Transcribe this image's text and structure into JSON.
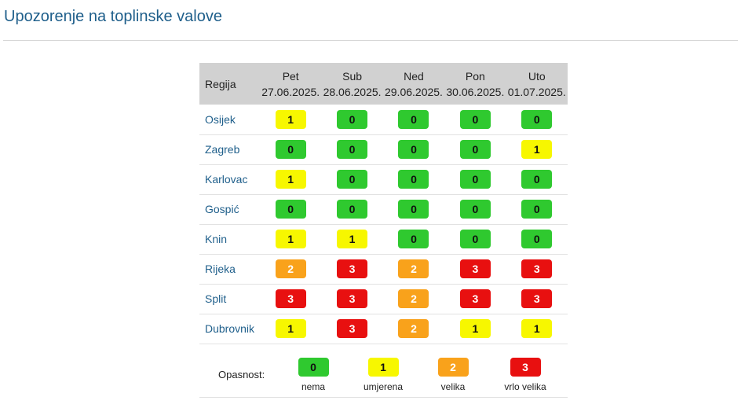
{
  "page": {
    "title": "Upozorenje na toplinske valove"
  },
  "table": {
    "region_header": "Regija",
    "days": [
      {
        "name": "Pet",
        "date": "27.06.2025."
      },
      {
        "name": "Sub",
        "date": "28.06.2025."
      },
      {
        "name": "Ned",
        "date": "29.06.2025."
      },
      {
        "name": "Pon",
        "date": "30.06.2025."
      },
      {
        "name": "Uto",
        "date": "01.07.2025."
      }
    ],
    "rows": [
      {
        "region": "Osijek",
        "levels": [
          "1",
          "0",
          "0",
          "0",
          "0"
        ]
      },
      {
        "region": "Zagreb",
        "levels": [
          "0",
          "0",
          "0",
          "0",
          "1"
        ]
      },
      {
        "region": "Karlovac",
        "levels": [
          "1",
          "0",
          "0",
          "0",
          "0"
        ]
      },
      {
        "region": "Gospić",
        "levels": [
          "0",
          "0",
          "0",
          "0",
          "0"
        ]
      },
      {
        "region": "Knin",
        "levels": [
          "1",
          "1",
          "0",
          "0",
          "0"
        ]
      },
      {
        "region": "Rijeka",
        "levels": [
          "2",
          "3",
          "2",
          "3",
          "3"
        ]
      },
      {
        "region": "Split",
        "levels": [
          "3",
          "3",
          "2",
          "3",
          "3"
        ]
      },
      {
        "region": "Dubrovnik",
        "levels": [
          "1",
          "3",
          "2",
          "1",
          "1"
        ]
      }
    ]
  },
  "legend": {
    "label": "Opasnost:",
    "items": [
      {
        "level": "0",
        "text": "nema"
      },
      {
        "level": "1",
        "text": "umjerena"
      },
      {
        "level": "2",
        "text": "velika"
      },
      {
        "level": "3",
        "text": "vrlo velika"
      }
    ]
  },
  "colors": {
    "level_0": "#2fc92f",
    "level_1": "#f7f700",
    "level_2": "#f9a21b",
    "level_3": "#e81010",
    "header_bg": "#d1d1d1",
    "link": "#1f5f8b"
  }
}
